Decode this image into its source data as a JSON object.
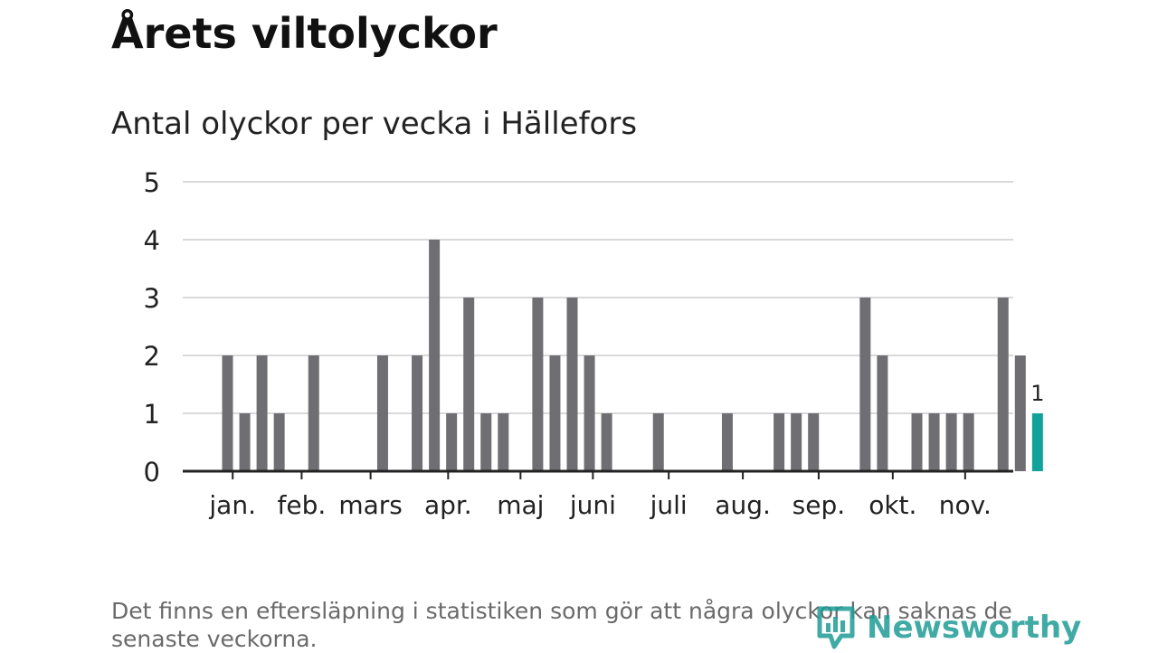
{
  "title": "Årets viltolyckor",
  "subtitle": "Antal olyckor per vecka i Hällefors",
  "footnote": "Det finns en eftersläpning i statistiken som gör att några olyckor kan saknas de senaste veckorna.",
  "brand": {
    "name": "Newsworthy",
    "icon": "newsworthy-logo-icon",
    "color": "#1f9c96"
  },
  "colors": {
    "bar": "#6f6e73",
    "highlight": "#11a39b",
    "grid": "#d9d9d9",
    "axis": "#222222",
    "text": "#222222"
  },
  "chart_data": {
    "type": "bar",
    "title": "Antal olyckor per vecka i Hällefors",
    "xlabel": "",
    "ylabel": "",
    "ylim": [
      0,
      5
    ],
    "yticks": [
      0,
      1,
      2,
      3,
      4,
      5
    ],
    "grid": true,
    "weeks": [
      1,
      2,
      3,
      4,
      5,
      6,
      7,
      8,
      9,
      10,
      11,
      12,
      13,
      14,
      15,
      16,
      17,
      18,
      19,
      20,
      21,
      22,
      23,
      24,
      25,
      26,
      27,
      28,
      29,
      30,
      31,
      32,
      33,
      34,
      35,
      36,
      37,
      38,
      39,
      40,
      41,
      42,
      43,
      44,
      45,
      46,
      47
    ],
    "values": [
      2,
      1,
      2,
      1,
      0,
      2,
      0,
      0,
      0,
      2,
      0,
      2,
      4,
      1,
      3,
      1,
      1,
      0,
      3,
      2,
      3,
      2,
      1,
      0,
      0,
      1,
      0,
      0,
      0,
      1,
      0,
      0,
      1,
      1,
      1,
      0,
      0,
      3,
      2,
      0,
      1,
      1,
      1,
      1,
      0,
      3,
      2
    ],
    "current_week": {
      "week": 48,
      "value": 1,
      "label": "1"
    },
    "month_labels": [
      {
        "label": "jan.",
        "week": 1.3
      },
      {
        "label": "feb.",
        "week": 5.3
      },
      {
        "label": "mars",
        "week": 9.3
      },
      {
        "label": "apr.",
        "week": 13.8
      },
      {
        "label": "maj",
        "week": 18.0
      },
      {
        "label": "juni",
        "week": 22.2
      },
      {
        "label": "juli",
        "week": 26.6
      },
      {
        "label": "aug.",
        "week": 30.9
      },
      {
        "label": "sep.",
        "week": 35.3
      },
      {
        "label": "okt.",
        "week": 39.6
      },
      {
        "label": "nov.",
        "week": 43.8
      }
    ]
  }
}
